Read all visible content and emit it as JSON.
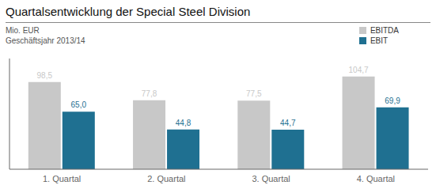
{
  "chart_data": {
    "type": "bar",
    "title": "Quartalsentwicklung der Special Steel Division",
    "subtitle": [
      "Mio. EUR",
      "Geschäftsjahr 2013/14"
    ],
    "categories": [
      "1. Quartal",
      "2. Quartal",
      "3. Quartal",
      "4. Quartal"
    ],
    "series": [
      {
        "name": "EBITDA",
        "color": "#c8c8c8",
        "values": [
          98.5,
          77.8,
          77.5,
          104.7
        ],
        "value_labels": [
          "98,5",
          "77,8",
          "77,5",
          "104,7"
        ]
      },
      {
        "name": "EBIT",
        "color": "#1f7091",
        "values": [
          65.0,
          44.8,
          44.7,
          69.9
        ],
        "value_labels": [
          "65,0",
          "44,8",
          "44,7",
          "69,9"
        ]
      }
    ],
    "ylim": [
      0,
      125
    ],
    "data_labels": true,
    "tick_labels": "x",
    "grid": false,
    "legend": "upper right"
  }
}
